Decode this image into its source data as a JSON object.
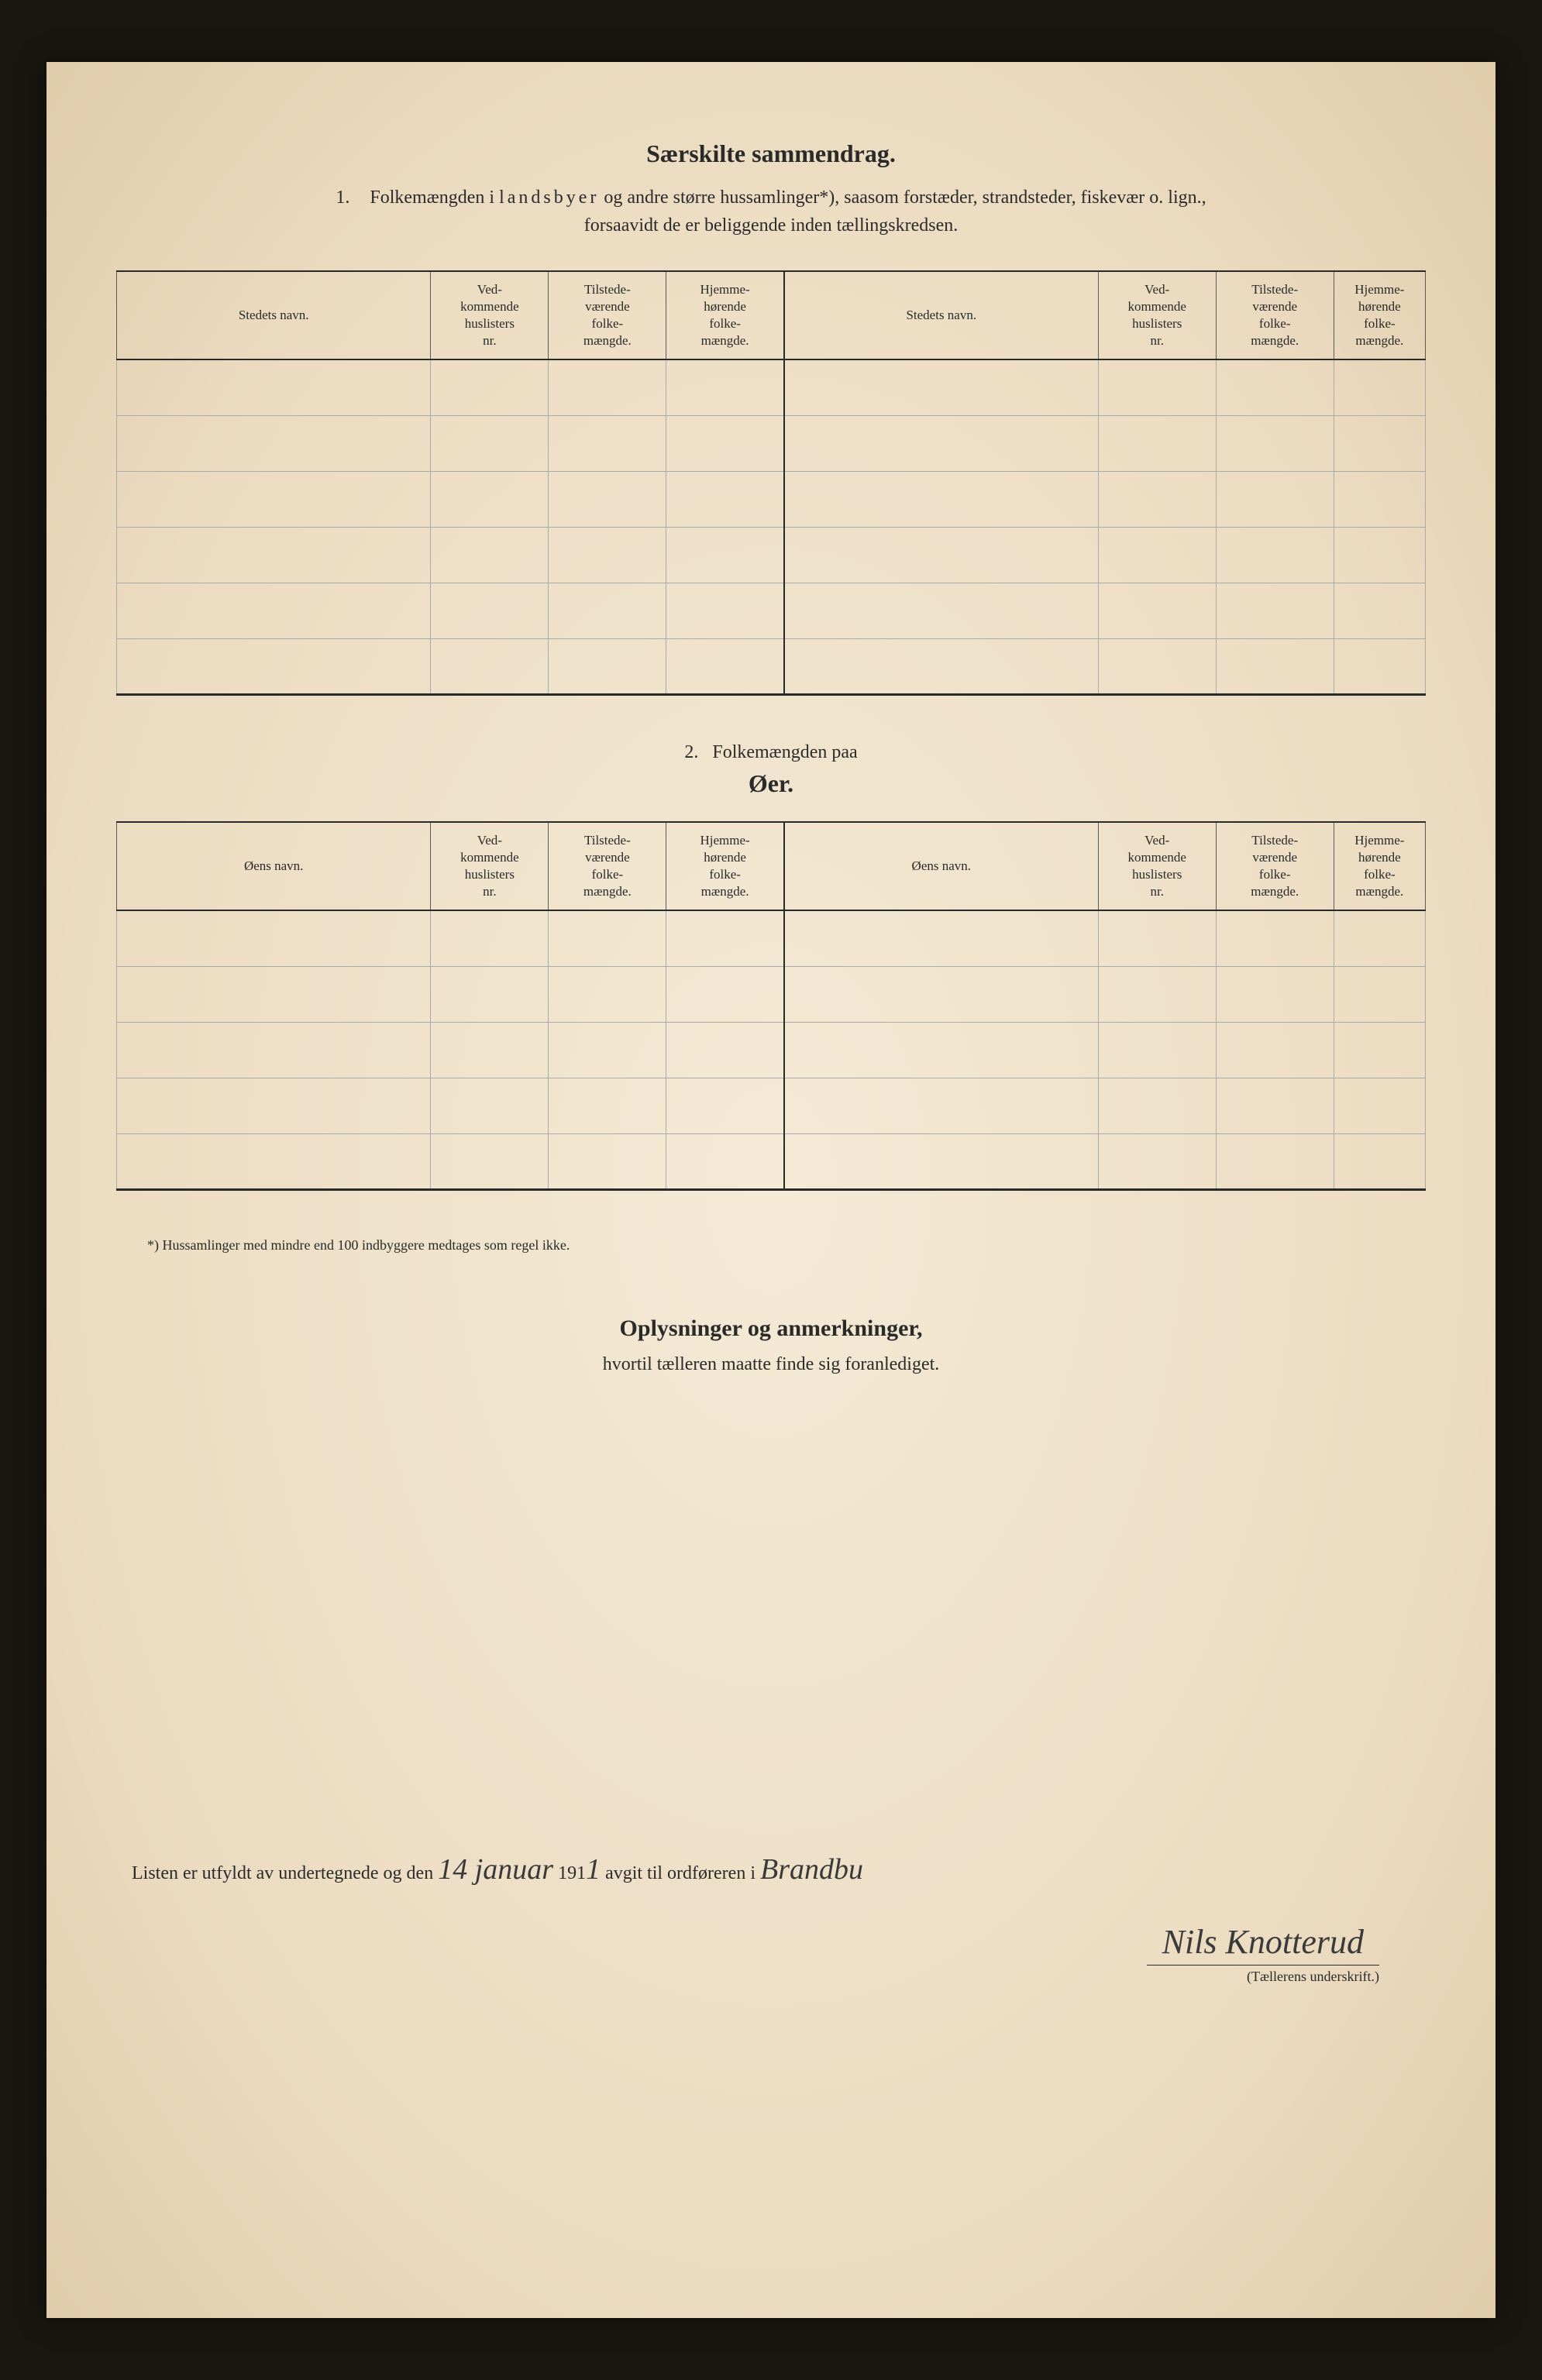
{
  "document": {
    "main_title": "Særskilte sammendrag.",
    "section1": {
      "number": "1.",
      "intro_part1": "Folkemængden i ",
      "intro_spaced": "landsbyer",
      "intro_part2": " og andre større hussamlinger*), saasom forstæder, strandsteder, fiskevær o. lign.,",
      "intro_line2": "forsaavidt de er beliggende inden tællingskredsen.",
      "headers": {
        "col1": "Stedets navn.",
        "col2": "Ved-\nkommende\nhuslisters\nnr.",
        "col3": "Tilstede-\nværende\nfolke-\nmængde.",
        "col4": "Hjemme-\nhørende\nfolke-\nmængde.",
        "col5": "Stedets navn.",
        "col6": "Ved-\nkommende\nhuslisters\nnr.",
        "col7": "Tilstede-\nværende\nfolke-\nmængde.",
        "col8": "Hjemme-\nhørende\nfolke-\nmængde."
      },
      "row_count": 6
    },
    "section2": {
      "number": "2.",
      "title": "Folkemængden paa",
      "subtitle": "Øer.",
      "headers": {
        "col1": "Øens navn.",
        "col2": "Ved-\nkommende\nhuslisters\nnr.",
        "col3": "Tilstede-\nværende\nfolke-\nmængde.",
        "col4": "Hjemme-\nhørende\nfolke-\nmængde.",
        "col5": "Øens navn.",
        "col6": "Ved-\nkommende\nhuslisters\nnr.",
        "col7": "Tilstede-\nværende\nfolke-\nmængde.",
        "col8": "Hjemme-\nhørende\nfolke-\nmængde."
      },
      "row_count": 5
    },
    "footnote": "*) Hussamlinger med mindre end 100 indbyggere medtages som regel ikke.",
    "remarks": {
      "title": "Oplysninger og anmerkninger,",
      "subtitle": "hvortil tælleren maatte finde sig foranlediget."
    },
    "signature": {
      "line_part1": "Listen er utfyldt av undertegnede og den ",
      "date_handwritten": "14 januar",
      "year_prefix": " 191",
      "year_handwritten": "1",
      "line_part2": " avgit til ordføreren i ",
      "place_handwritten": "Brandbu",
      "name": "Nils Knotterud",
      "caption": "(Tællerens underskrift.)"
    }
  },
  "styling": {
    "background_outer": "#1a1612",
    "background_page": "#f0e4ce",
    "text_color": "#2a2a2a",
    "border_heavy": "#2a2a2a",
    "border_light": "#aaaaaa",
    "title_fontsize": 32,
    "body_fontsize": 24,
    "header_fontsize": 17,
    "footnote_fontsize": 18,
    "handwritten_color": "#3a3a3a"
  }
}
